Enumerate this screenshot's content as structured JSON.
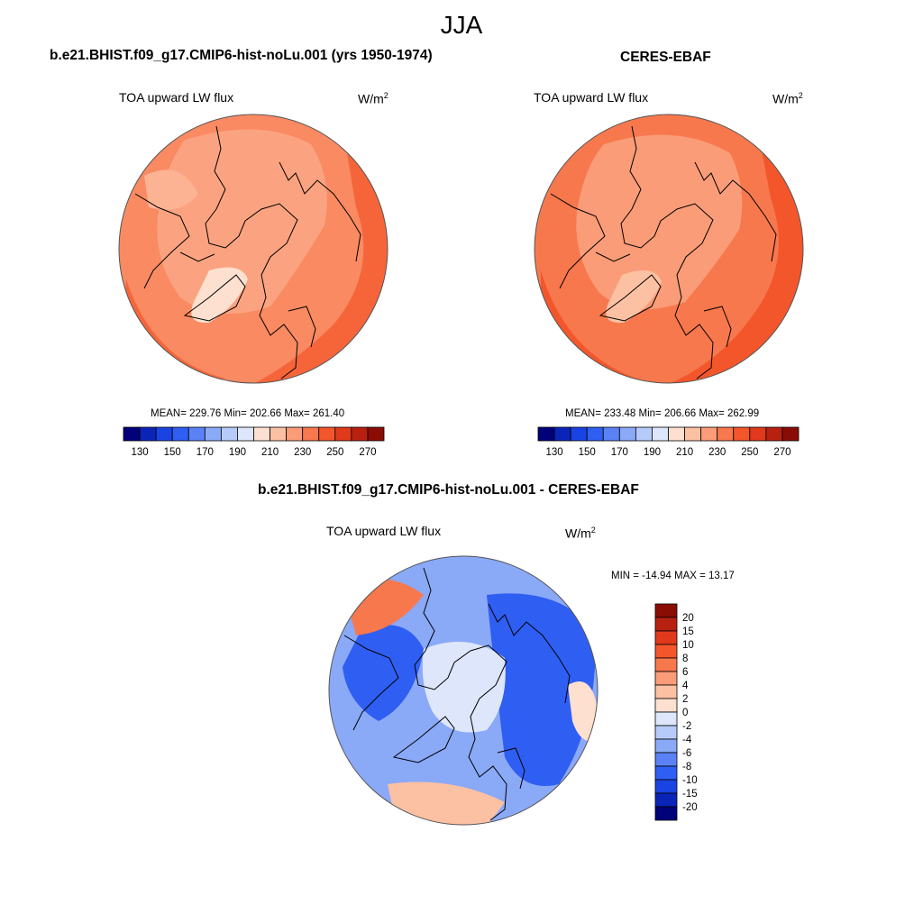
{
  "season_title": "JJA",
  "colors": {
    "land_outline": "#000000",
    "map_border": "#555555",
    "base_model": "#f99a74",
    "base_obs": "#f6875f",
    "base_diff": "#8fb3f4"
  },
  "panels": {
    "model": {
      "title": "b.e21.BHIST.f09_g17.CMIP6-hist-noLu.001 (yrs 1950-1974)",
      "variable": "TOA upward LW flux",
      "units_base": "W/m",
      "units_exp": "2",
      "stats": "MEAN= 229.76  Min= 202.66  Max= 261.40"
    },
    "obs": {
      "title": "CERES-EBAF",
      "variable": "TOA upward LW flux",
      "units_base": "W/m",
      "units_exp": "2",
      "stats": "MEAN= 233.48  Min= 206.66  Max= 262.99"
    },
    "diff": {
      "title": "b.e21.BHIST.f09_g17.CMIP6-hist-noLu.001 - CERES-EBAF",
      "variable": "TOA upward LW flux",
      "units_base": "W/m",
      "units_exp": "2",
      "stats": "MIN = -14.94 MAX =  13.17"
    }
  },
  "abs_colorbar": {
    "colors": [
      "#01017a",
      "#0b24b8",
      "#1a43e3",
      "#2f5ef2",
      "#5a82f5",
      "#8aa9f7",
      "#b6cbf9",
      "#dde6fb",
      "#fde0cf",
      "#fcc0a3",
      "#fa9c78",
      "#f7784d",
      "#f4562b",
      "#e0391b",
      "#b82110",
      "#8a0d05"
    ],
    "tick_labels": [
      "130",
      "150",
      "170",
      "190",
      "210",
      "230",
      "250",
      "270"
    ]
  },
  "diff_colorbar": {
    "colors_top_to_bottom": [
      "#8a0d05",
      "#b82110",
      "#e0391b",
      "#f4562b",
      "#f7784d",
      "#fa9c78",
      "#fcc0a3",
      "#fde0cf",
      "#dde6fb",
      "#b6cbf9",
      "#8aa9f7",
      "#5a82f5",
      "#2f5ef2",
      "#1a43e3",
      "#0b24b8",
      "#01017a"
    ],
    "tick_labels": [
      "20",
      "15",
      "10",
      "8",
      "6",
      "4",
      "2",
      "0",
      "-2",
      "-4",
      "-6",
      "-8",
      "-10",
      "-15",
      "-20"
    ]
  }
}
